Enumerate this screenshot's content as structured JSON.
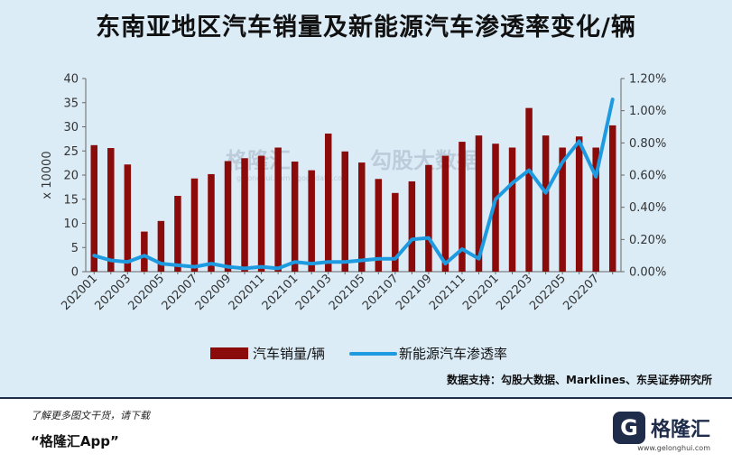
{
  "page": {
    "title": "东南亚地区汽车销量及新能源汽车渗透率变化/辆"
  },
  "source_note": "数据支持：勾股大数据、Marklines、东吴证券研究所",
  "footer": {
    "promo_line": "了解更多图文干货，请下载",
    "app_name": "“格隆汇App”",
    "brand_mark": "G",
    "brand_name": "格隆汇",
    "brand_url": "www.gelonghui.com"
  },
  "watermark": {
    "brand": "格隆汇",
    "partner": "勾股大数据",
    "url": "gelonghui.com · gogudata.com"
  },
  "colors": {
    "background": "#dbecf7",
    "bar": "#8b0a0a",
    "line": "#1e9be0",
    "axis": "#666666",
    "text": "#333333"
  },
  "chart_data": {
    "type": "bar",
    "title": "东南亚地区汽车销量及新能源汽车渗透率变化/辆",
    "x": [
      "202001",
      "202002",
      "202003",
      "202004",
      "202005",
      "202006",
      "202007",
      "202008",
      "202009",
      "202010",
      "202011",
      "202012",
      "202101",
      "202102",
      "202103",
      "202104",
      "202105",
      "202106",
      "202107",
      "202108",
      "202109",
      "202110",
      "202111",
      "202112",
      "202201",
      "202202",
      "202203",
      "202204",
      "202205",
      "202206",
      "202207",
      "202208"
    ],
    "x_tick_labels": [
      "202001",
      "202003",
      "202005",
      "202007",
      "202009",
      "202011",
      "202101",
      "202103",
      "202105",
      "202107",
      "202109",
      "202111",
      "202201",
      "202203",
      "202205",
      "202207"
    ],
    "ylabel": "x 10000",
    "ylim": [
      0,
      40
    ],
    "y_ticks": [
      "0",
      "5",
      "10",
      "15",
      "20",
      "25",
      "30",
      "35",
      "40"
    ],
    "y2lim": [
      0,
      1.2
    ],
    "y2_ticks": [
      "0.00%",
      "0.20%",
      "0.40%",
      "0.60%",
      "0.80%",
      "1.00%",
      "1.20%"
    ],
    "grid": false,
    "legend_position": "bottom",
    "series": [
      {
        "name": "汽车销量/辆",
        "type": "bar",
        "axis": "left",
        "values": [
          26.2,
          25.6,
          22.2,
          8.3,
          10.5,
          15.7,
          19.3,
          20.2,
          22.9,
          23.5,
          24.0,
          25.7,
          22.8,
          21.0,
          28.6,
          24.9,
          22.6,
          19.2,
          16.3,
          18.7,
          22.1,
          24.0,
          26.9,
          28.2,
          26.5,
          25.7,
          33.9,
          28.2,
          25.7,
          28.0,
          25.7,
          30.3
        ]
      },
      {
        "name": "新能源汽车渗透率",
        "type": "line",
        "axis": "right",
        "values": [
          0.1,
          0.07,
          0.06,
          0.1,
          0.05,
          0.04,
          0.03,
          0.05,
          0.03,
          0.02,
          0.03,
          0.02,
          0.06,
          0.05,
          0.06,
          0.06,
          0.07,
          0.08,
          0.08,
          0.2,
          0.21,
          0.05,
          0.14,
          0.08,
          0.45,
          0.55,
          0.63,
          0.49,
          0.68,
          0.81,
          0.59,
          1.07
        ]
      }
    ]
  }
}
